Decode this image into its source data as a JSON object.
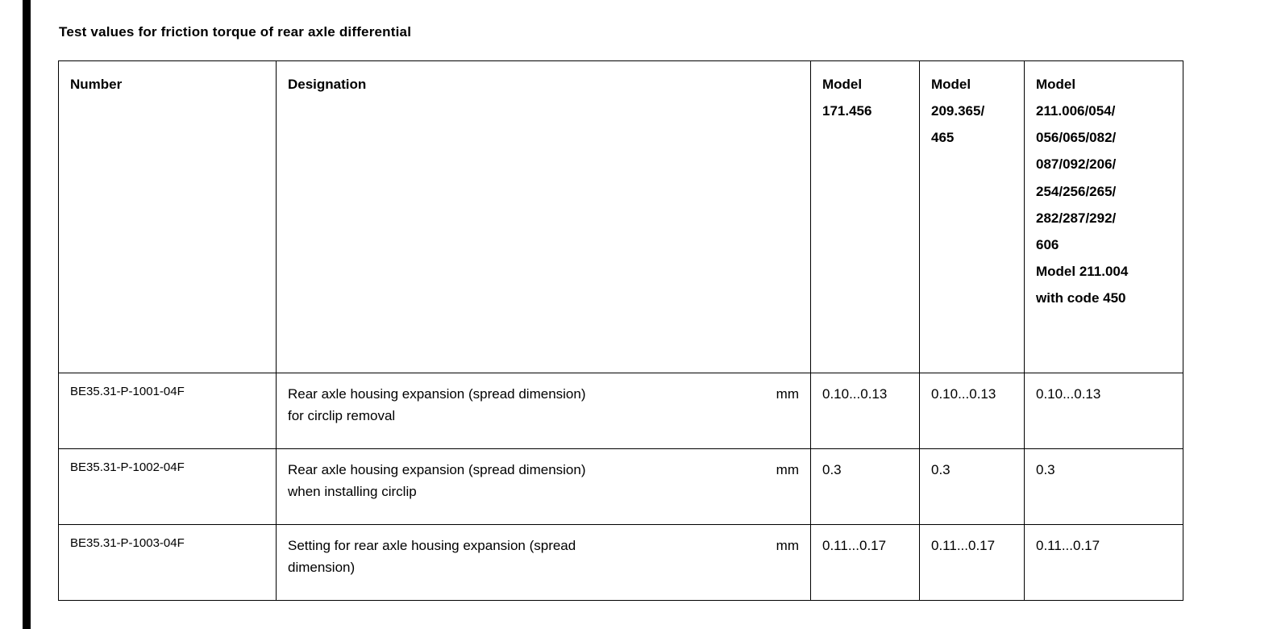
{
  "page": {
    "title": "Test values for friction torque of rear axle differential"
  },
  "table": {
    "headers": {
      "number": "Number",
      "designation": "Designation",
      "model_171": "Model\n171.456",
      "model_209": "Model\n209.365/\n465",
      "model_211": "Model\n211.006/054/\n056/065/082/\n087/092/206/\n254/256/265/\n282/287/292/\n606\nModel 211.004\nwith code 450"
    },
    "rows": [
      {
        "number": "BE35.31-P-1001-04F",
        "designation": "Rear axle housing expansion (spread dimension)\nfor circlip removal",
        "unit": "mm",
        "values": [
          "0.10...0.13",
          "0.10...0.13",
          "0.10...0.13"
        ]
      },
      {
        "number": "BE35.31-P-1002-04F",
        "designation": "Rear axle housing expansion (spread dimension)\nwhen installing circlip",
        "unit": "mm",
        "values": [
          "0.3",
          "0.3",
          "0.3"
        ]
      },
      {
        "number": "BE35.31-P-1003-04F",
        "designation": "Setting for rear axle housing expansion (spread\ndimension)",
        "unit": "mm",
        "values": [
          "0.11...0.17",
          "0.11...0.17",
          "0.11...0.17"
        ]
      }
    ]
  }
}
